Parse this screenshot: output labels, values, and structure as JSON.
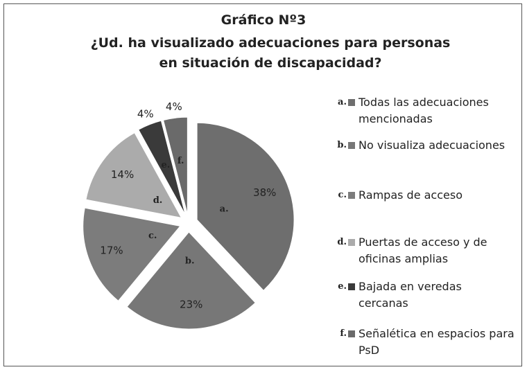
{
  "chart_data": {
    "type": "pie",
    "title": "Gráfico Nº3",
    "subtitle": "¿Ud. ha visualizado adecuaciones para personas en situación de discapacidad?",
    "categories": [
      "Todas las adecuaciones mencionadas",
      "No visualiza adecuaciones",
      "Rampas de acceso",
      "Puertas de acceso y de oficinas amplias",
      "Bajada en veredas cercanas",
      "Señalética en espacios para PsD"
    ],
    "letters": [
      "a.",
      "b.",
      "c.",
      "d.",
      "e.",
      "f."
    ],
    "values": [
      38,
      23,
      17,
      14,
      4,
      4
    ],
    "value_labels": [
      "38%",
      "23%",
      "17%",
      "14%",
      "4%",
      "4%"
    ],
    "colors": [
      "#6e6e6e",
      "#777777",
      "#7c7c7c",
      "#ababab",
      "#3a3a3a",
      "#6a6a6a"
    ]
  }
}
